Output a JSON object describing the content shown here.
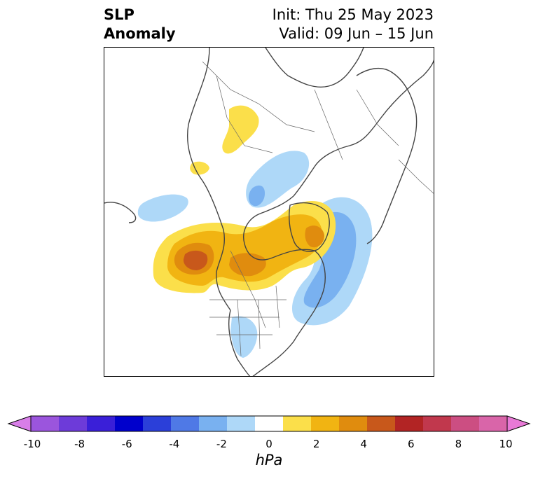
{
  "title": {
    "left_line1": "SLP",
    "left_line2": "Anomaly",
    "right_line1": "Init: Thu 25 May 2023",
    "right_line2": "Valid: 09 Jun – 15 Jun"
  },
  "colorbar": {
    "label": "hPa",
    "ticks": [
      "-10",
      "-8",
      "-6",
      "-4",
      "-2",
      "0",
      "2",
      "4",
      "6",
      "8",
      "10"
    ],
    "colors": [
      "#d87ee8",
      "#9b55dd",
      "#6d3bd9",
      "#3a1fd8",
      "#0000cc",
      "#2b3fd9",
      "#4f79e6",
      "#79b1f0",
      "#aed8f8",
      "#ffffff",
      "#fbdf4a",
      "#f1b412",
      "#e08c0e",
      "#c8581b",
      "#b22424",
      "#c1384d",
      "#cc4e82",
      "#d965a9",
      "#e879d6"
    ],
    "extend": "both"
  },
  "map": {
    "projection": "polar stereographic (north)",
    "field": "sea level pressure anomaly",
    "features": [
      "coastlines",
      "country borders",
      "state/province borders"
    ]
  }
}
